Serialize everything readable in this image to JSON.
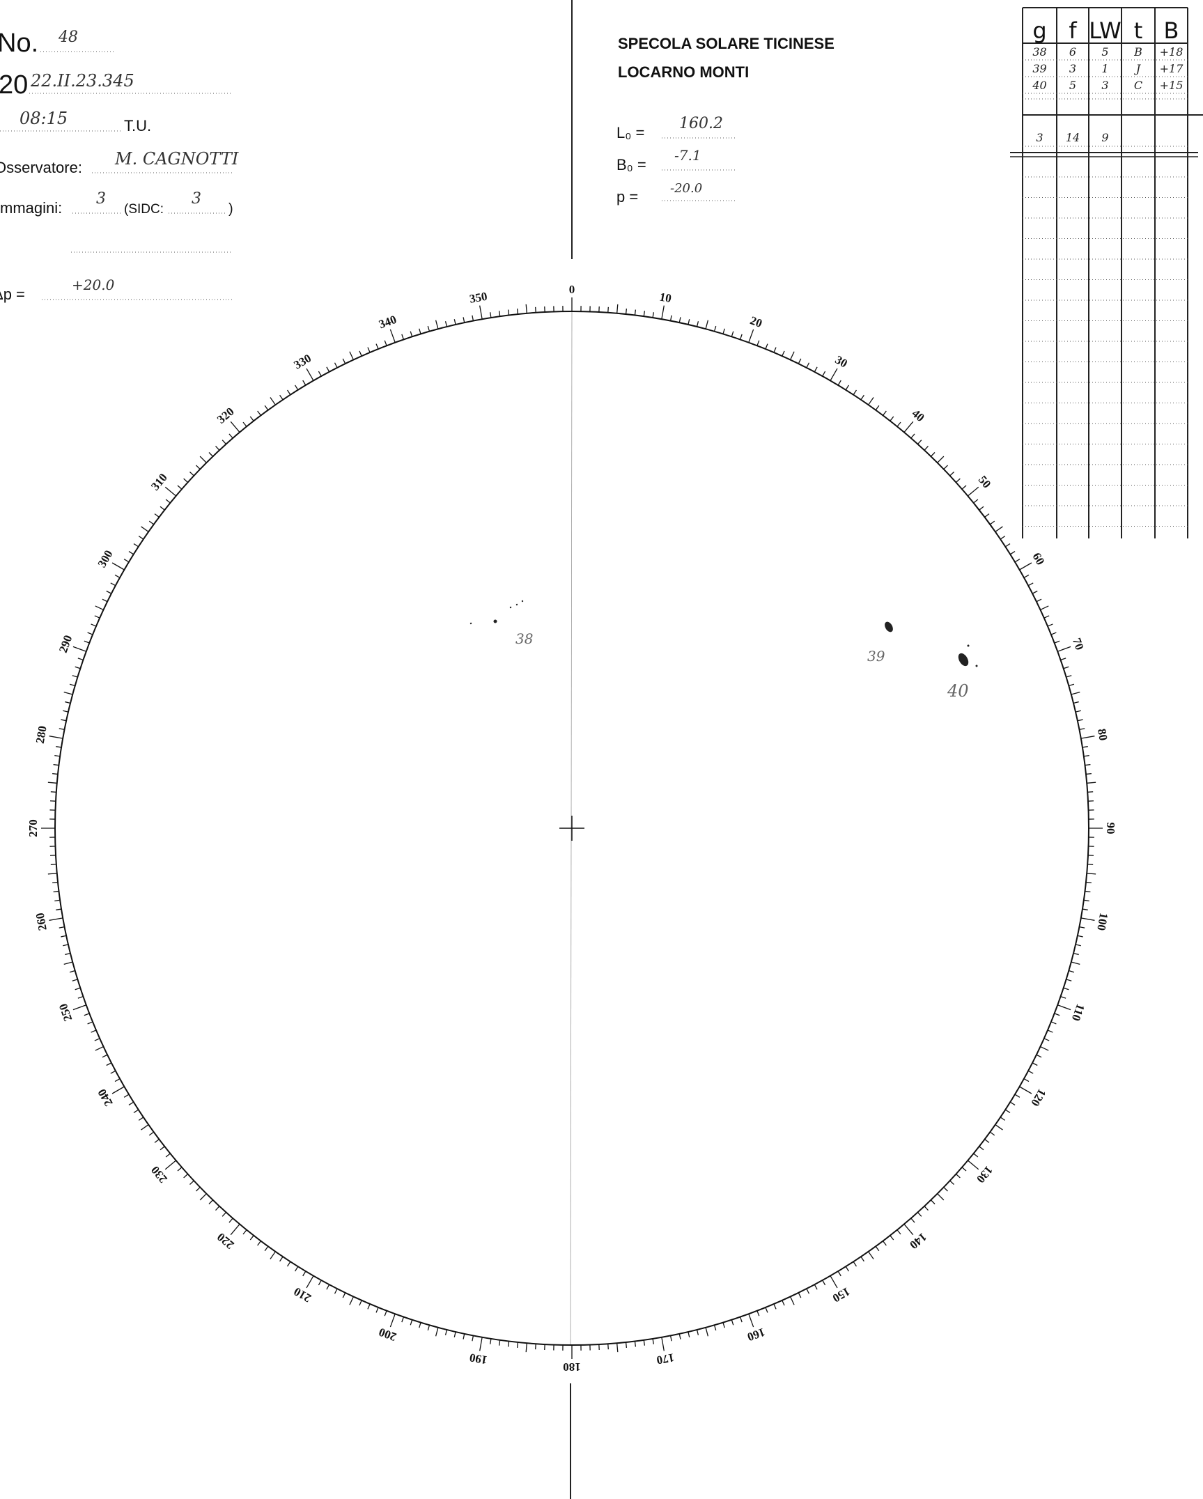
{
  "header": {
    "number_label": "No.",
    "number": "48",
    "year_prefix": "20",
    "date": "22.II.23.345",
    "time": "08:15",
    "time_unit": "T.U.",
    "observer_label": "Osservatore:",
    "observer": "M. CAGNOTTI",
    "images_label": "mmagini:",
    "images": "3",
    "sidc_label": "(SIDC:",
    "sidc": "3",
    "sidc_close": ")",
    "dp_label": "Δp =",
    "dp": "+20.0"
  },
  "observatory": {
    "name": "SPECOLA SOLARE TICINESE",
    "location": "LOCARNO MONTI",
    "l0_label": "L₀ =",
    "l0": "160.2",
    "b0_label": "B₀ =",
    "b0": "-7.1",
    "p_label": "p  =",
    "p": "-20.0"
  },
  "table": {
    "headers": [
      "g",
      "f",
      "LW",
      "t",
      "B"
    ],
    "rows": [
      [
        "38",
        "6",
        "5",
        "B",
        "+18"
      ],
      [
        "39",
        "3",
        "1",
        "J",
        "+17"
      ],
      [
        "40",
        "5",
        "3",
        "C",
        "+15"
      ]
    ],
    "totals": [
      "3",
      "14",
      "9"
    ]
  },
  "disk": {
    "degree_labels": [
      0,
      10,
      20,
      30,
      40,
      50,
      60,
      70,
      80,
      90,
      100,
      110,
      120,
      130,
      140,
      150,
      160,
      170,
      180,
      190,
      200,
      210,
      220,
      230,
      240,
      250,
      260,
      270,
      280,
      290,
      300,
      310,
      320,
      330,
      340,
      350
    ],
    "groups": [
      "38",
      "39",
      "40"
    ]
  }
}
